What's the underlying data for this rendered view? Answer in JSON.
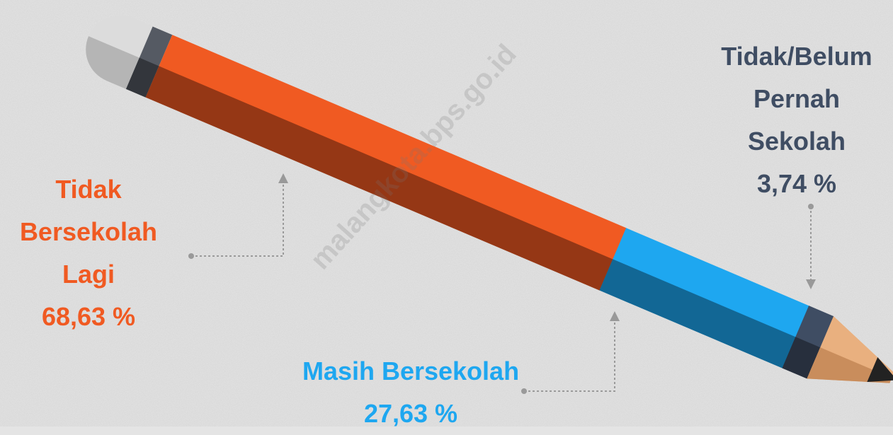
{
  "chart_data": {
    "type": "pencil",
    "categories": [
      "Tidak Bersekolah Lagi",
      "Masih Bersekolah",
      "Tidak/Belum Pernah Sekolah"
    ],
    "values": [
      68.63,
      27.63,
      3.74
    ],
    "value_labels": [
      "68,63 %",
      "27,63 %",
      "3,74 %"
    ],
    "colors": [
      "#f05a22",
      "#1ea7f0",
      "#3f4d63"
    ],
    "watermark": "malangkota.bps.go.id"
  }
}
